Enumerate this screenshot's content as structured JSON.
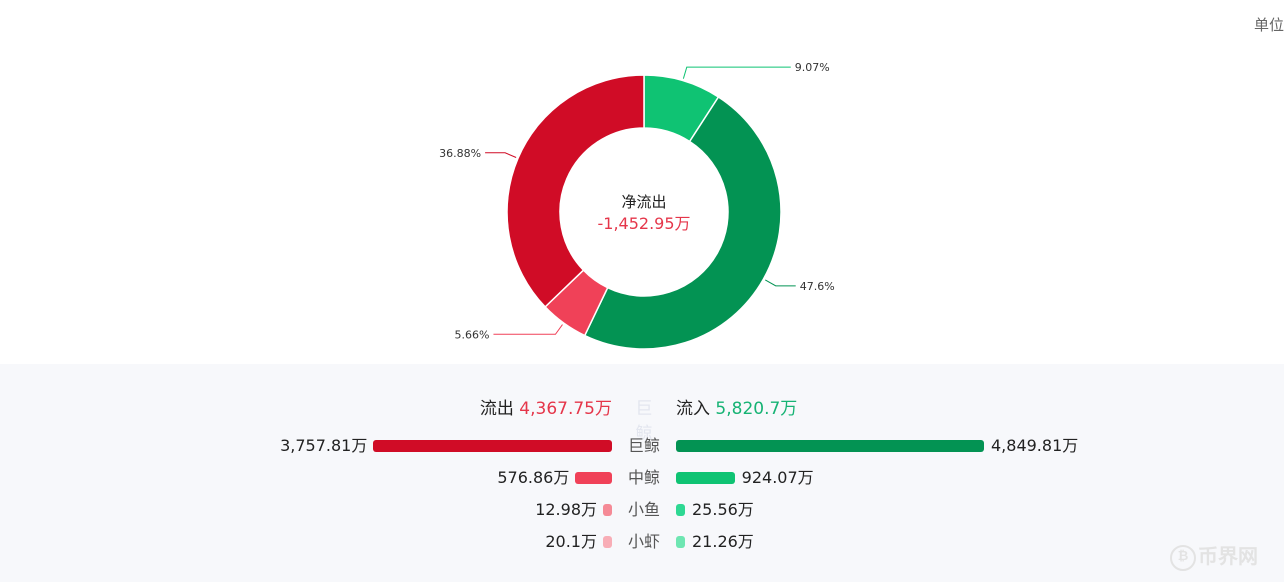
{
  "unit_label": "单位",
  "chart_data": [
    {
      "type": "pie",
      "variant": "donut",
      "center_title": "净流出",
      "center_value": "-1,452.95万",
      "slices": [
        {
          "label": "9.07%",
          "value": 9.07,
          "color": "#0fc373"
        },
        {
          "label": "47.6%",
          "value": 47.6,
          "color": "#039353"
        },
        {
          "label": "5.66%",
          "value": 5.66,
          "color": "#f04158"
        },
        {
          "label": "36.88%",
          "value": 36.88,
          "color": "#d00c26"
        }
      ]
    },
    {
      "type": "bar",
      "orientation": "horizontal-diverging",
      "summary": {
        "out_label": "流出",
        "out_value": "4,367.75万",
        "middle_label": "巨鲸",
        "in_label": "流入",
        "in_value": "5,820.7万"
      },
      "categories": [
        "巨鲸",
        "中鲸",
        "小鱼",
        "小虾"
      ],
      "series": [
        {
          "name": "流出",
          "values": [
            3757.81,
            576.86,
            12.98,
            20.1
          ],
          "labels": [
            "3,757.81万",
            "576.86万",
            "12.98万",
            "20.1万"
          ],
          "colors": [
            "#d00c26",
            "#f04158",
            "#f58a96",
            "#f8adb6"
          ]
        },
        {
          "name": "流入",
          "values": [
            4849.81,
            924.07,
            25.56,
            21.26
          ],
          "labels": [
            "4,849.81万",
            "924.07万",
            "25.56万",
            "21.26万"
          ],
          "colors": [
            "#039353",
            "#0fc373",
            "#2ed893",
            "#6ee6b2"
          ]
        }
      ]
    }
  ],
  "watermark": {
    "icon": "bitcoin-coin-icon",
    "text": "币界网"
  }
}
